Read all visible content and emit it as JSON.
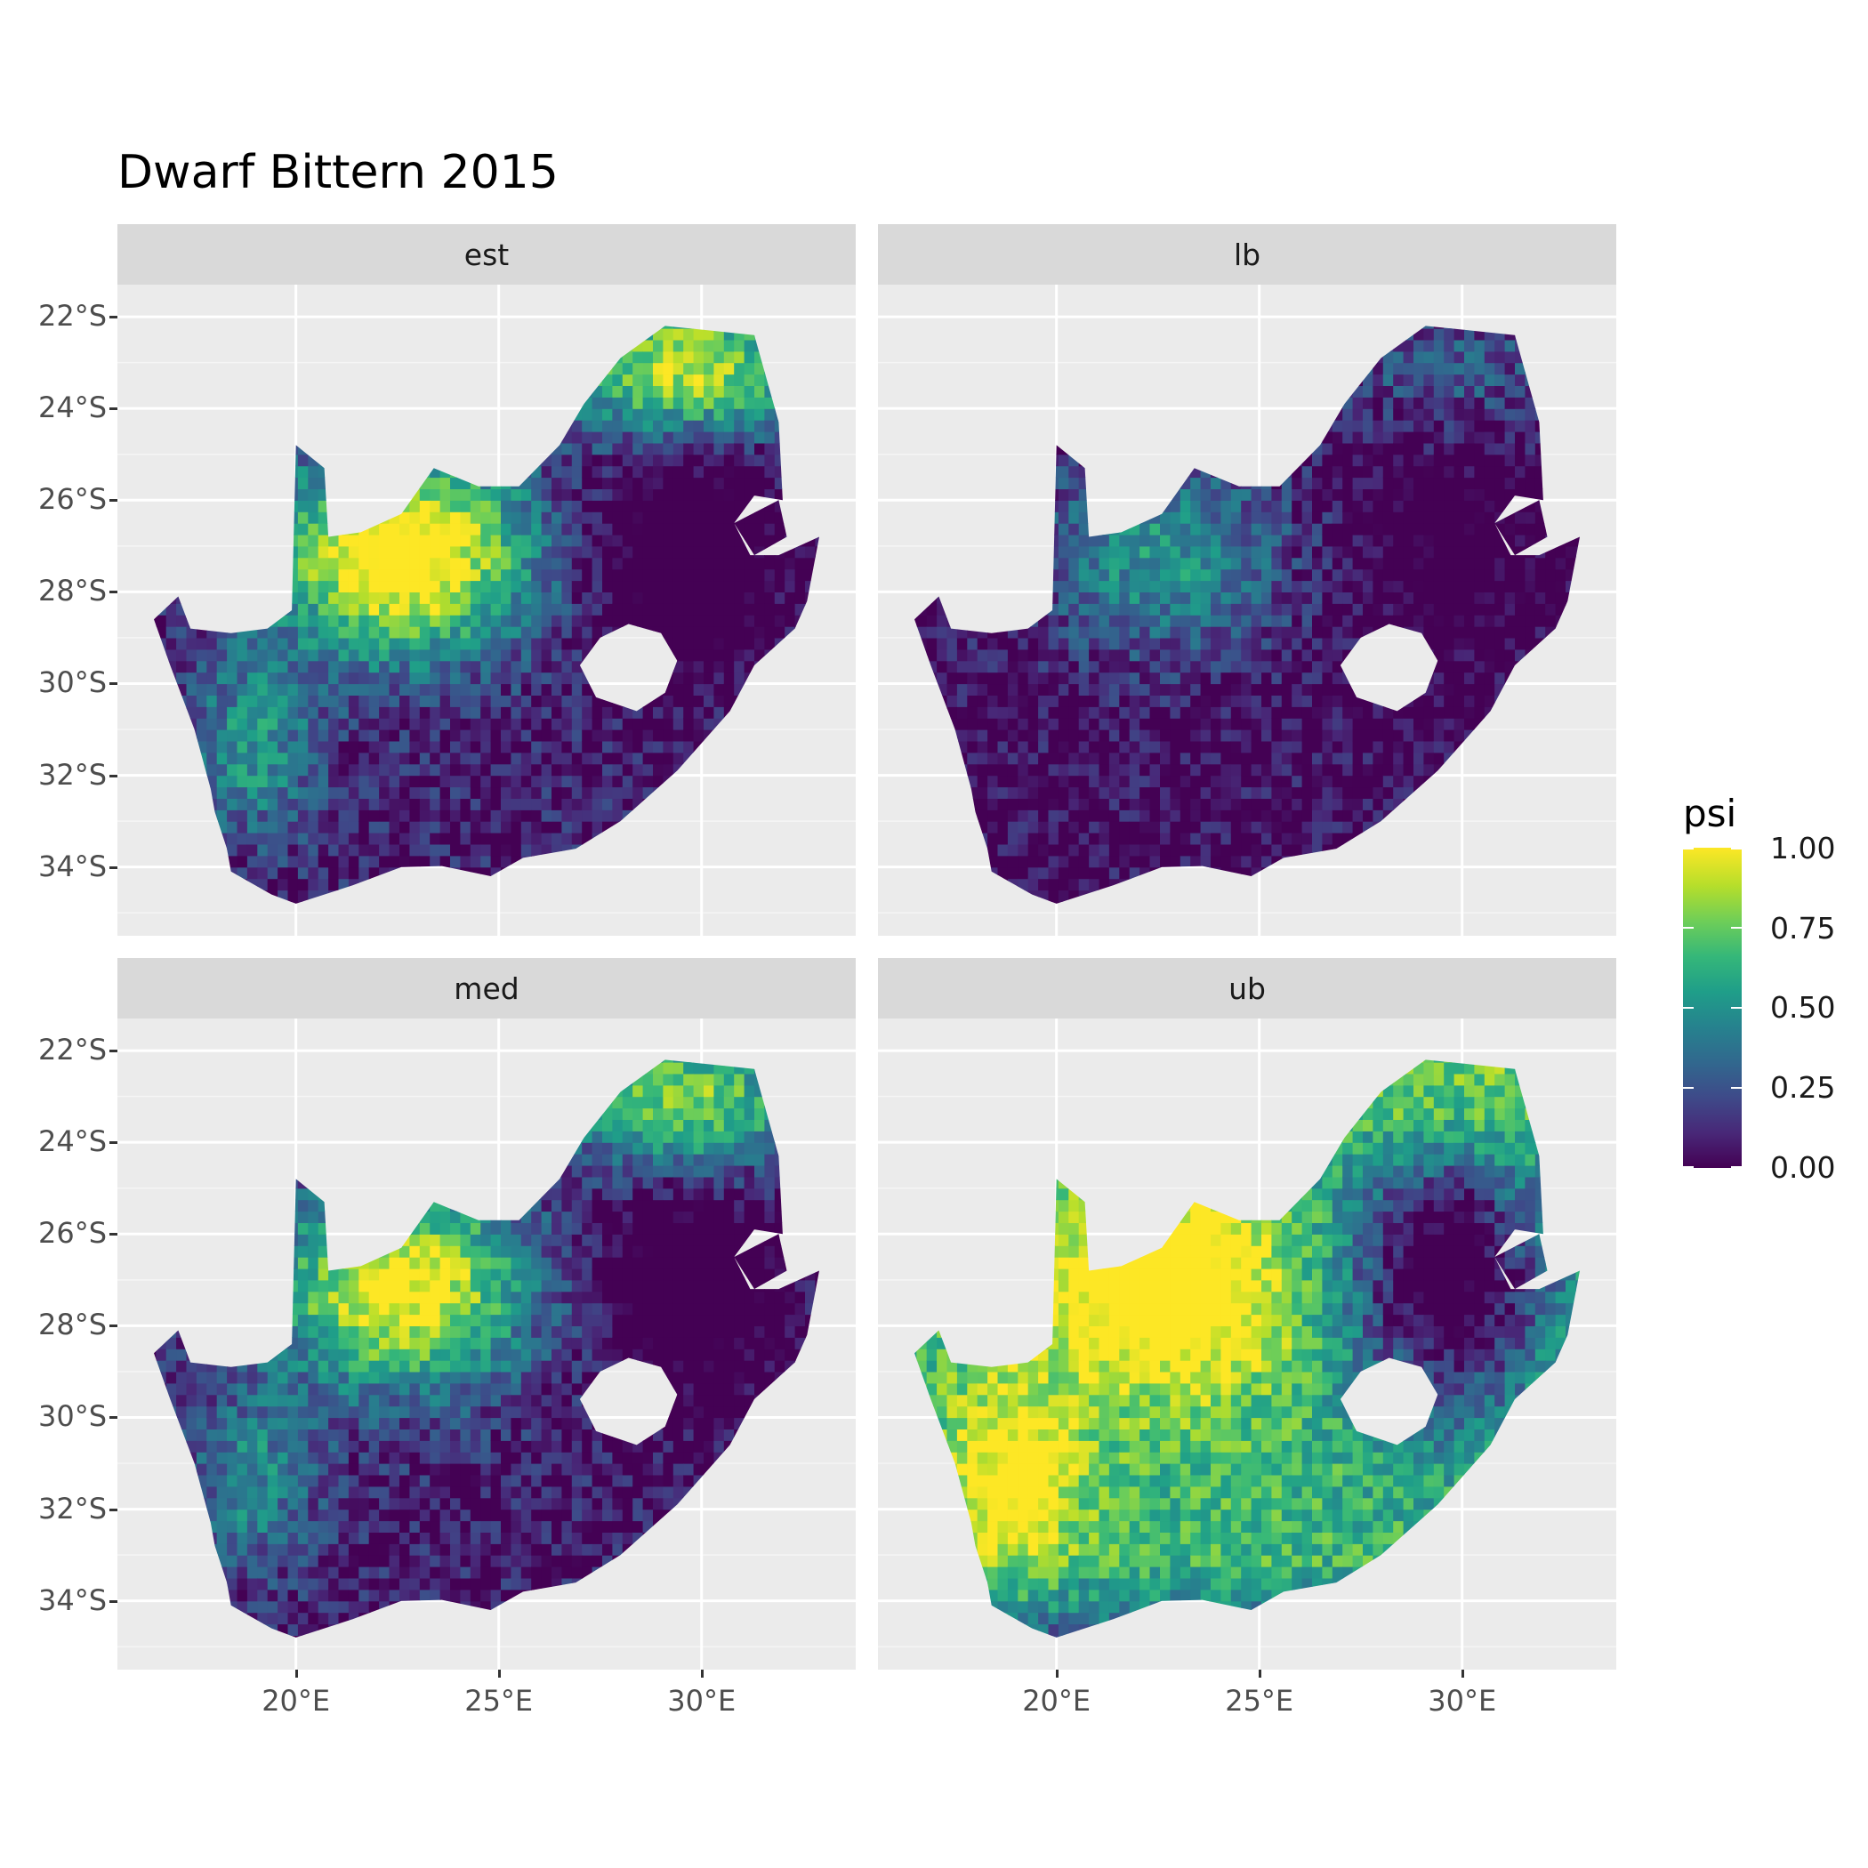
{
  "title": "Dwarf Bittern 2015",
  "facets": [
    "est",
    "lb",
    "med",
    "ub"
  ],
  "y_ticks": [
    "22°S",
    "24°S",
    "26°S",
    "28°S",
    "30°S",
    "32°S",
    "34°S"
  ],
  "x_ticks": [
    "20°E",
    "25°E",
    "30°E"
  ],
  "legend": {
    "title": "psi",
    "labels": [
      "1.00",
      "0.75",
      "0.50",
      "0.25",
      "0.00"
    ],
    "range": [
      0,
      1
    ],
    "colors": [
      "#440154",
      "#3b528b",
      "#21908c",
      "#5dc963",
      "#fde725"
    ]
  },
  "map_data": {
    "type": "raster",
    "lon_range": [
      15.6,
      33.8
    ],
    "lat_range": [
      -35.5,
      -21.3
    ],
    "y_tick_values": [
      -22,
      -24,
      -26,
      -28,
      -30,
      -32,
      -34
    ],
    "x_tick_values": [
      20,
      25,
      30
    ],
    "panel_mean_psi": {
      "est": 0.45,
      "lb": 0.15,
      "med": 0.38,
      "ub": 0.7
    }
  }
}
